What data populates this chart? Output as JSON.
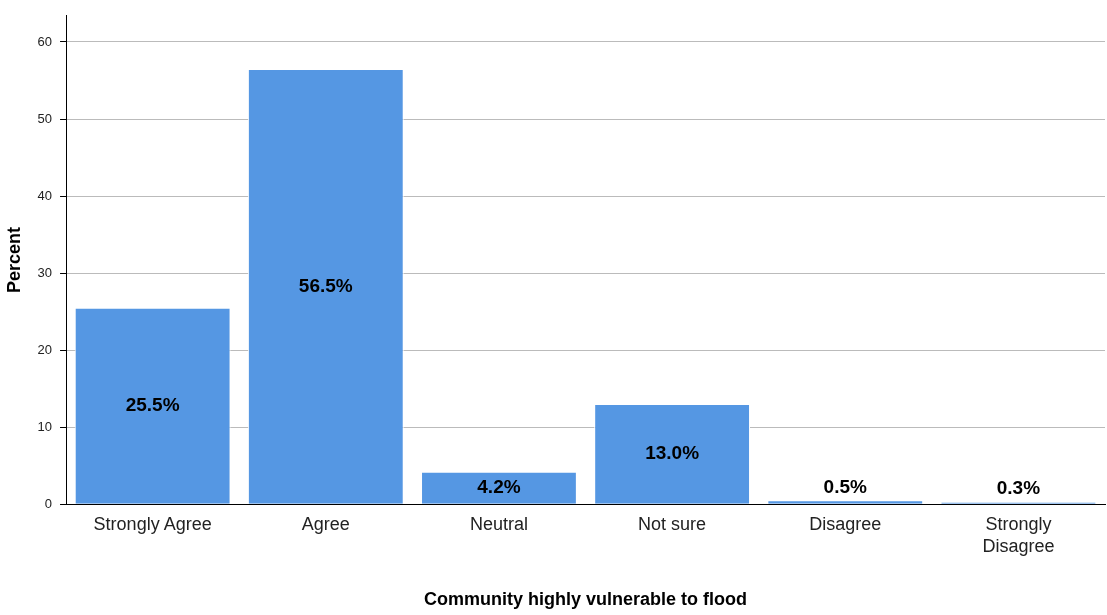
{
  "chart_data": {
    "type": "bar",
    "xlabel": "Community highly vulnerable to flood",
    "ylabel": "Percent",
    "categories": [
      "Strongly Agree",
      "Agree",
      "Neutral",
      "Not sure",
      "Disagree",
      "Strongly Disagree"
    ],
    "values": [
      25.5,
      56.5,
      4.2,
      13.0,
      0.5,
      0.3
    ],
    "value_labels": [
      "25.5%",
      "56.5%",
      "4.2%",
      "13.0%",
      "0.5%",
      "0.3%"
    ],
    "color": "#5597e3",
    "ylim": [
      0,
      63.4
    ],
    "yticks": [
      0,
      10,
      20,
      30,
      40,
      50,
      60
    ],
    "grid": "y",
    "legend": false
  }
}
